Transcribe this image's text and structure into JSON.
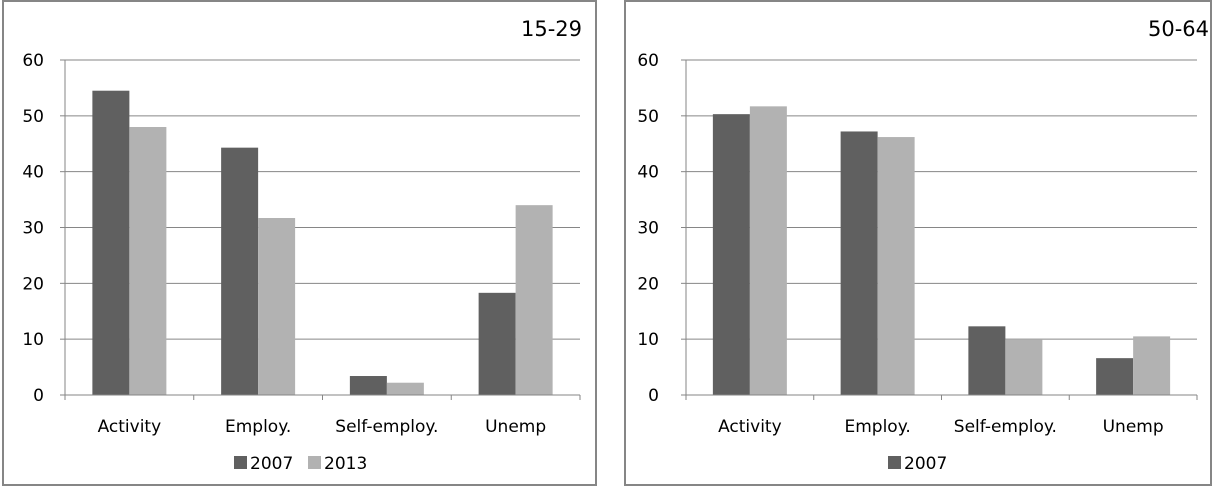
{
  "chart_data": [
    {
      "type": "bar",
      "title": "15-29",
      "categories": [
        "Activity",
        "Employ.",
        "Self-employ.",
        "Unemp"
      ],
      "series": [
        {
          "name": "2007",
          "values": [
            54.5,
            44.3,
            3.4,
            18.3
          ],
          "color": "#606060"
        },
        {
          "name": "2013",
          "values": [
            48.0,
            31.7,
            2.2,
            34.0
          ],
          "color": "#b2b2b2"
        }
      ],
      "ylim": [
        0,
        60
      ],
      "yticks": [
        0,
        10,
        20,
        30,
        40,
        50,
        60
      ],
      "grid": true,
      "legend_placement": "bottom"
    },
    {
      "type": "bar",
      "title": "50-64",
      "categories": [
        "Activity",
        "Employ.",
        "Self-employ.",
        "Unemp"
      ],
      "series": [
        {
          "name": "2007",
          "values": [
            50.3,
            47.2,
            12.3,
            6.6
          ],
          "color": "#606060"
        },
        {
          "values": [
            51.7,
            46.2,
            10.0,
            10.5
          ],
          "color": "#b2b2b2"
        }
      ],
      "ylim": [
        0,
        60
      ],
      "yticks": [
        0,
        10,
        20,
        30,
        40,
        50,
        60
      ],
      "grid": true,
      "legend_placement": "bottom"
    }
  ]
}
